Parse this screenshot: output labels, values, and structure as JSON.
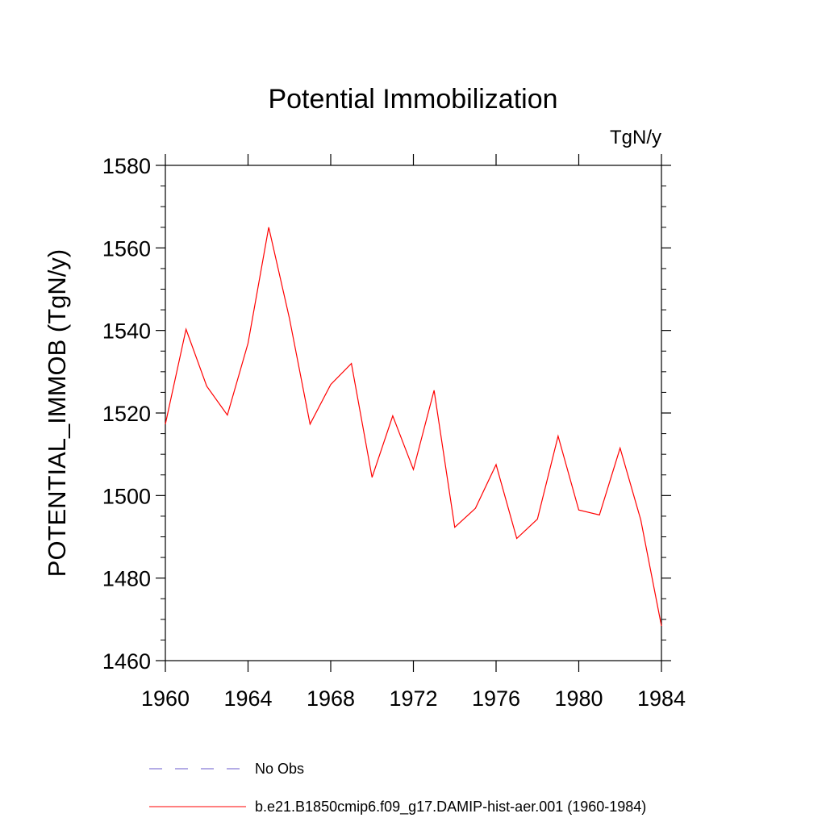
{
  "chart_data": {
    "type": "line",
    "title": "Potential Immobilization",
    "units_label": "TgN/y",
    "ylabel": "POTENTIAL_IMMOB  (TgN/y)",
    "xlabel": "",
    "xlim": [
      1960,
      1984
    ],
    "ylim": [
      1460,
      1580
    ],
    "xticks": [
      1960,
      1964,
      1968,
      1972,
      1976,
      1980,
      1984
    ],
    "yticks": [
      1460,
      1480,
      1500,
      1520,
      1540,
      1560,
      1580
    ],
    "grid": false,
    "legend_position": "bottom",
    "series": [
      {
        "name": "b.e21.B1850cmip6.f09_g17.DAMIP-hist-aer.001 (1960-1984)",
        "color": "#ff0000",
        "style": "solid",
        "x": [
          1960,
          1961,
          1962,
          1963,
          1964,
          1965,
          1966,
          1967,
          1968,
          1969,
          1970,
          1971,
          1972,
          1973,
          1974,
          1975,
          1976,
          1977,
          1978,
          1979,
          1980,
          1981,
          1982,
          1983,
          1984
        ],
        "values": [
          1517.3,
          1540.3,
          1526.5,
          1519.5,
          1536.9,
          1565.0,
          1543.0,
          1517.3,
          1526.9,
          1532.0,
          1504.4,
          1519.3,
          1506.3,
          1525.5,
          1492.3,
          1496.9,
          1507.5,
          1489.6,
          1494.3,
          1514.4,
          1496.5,
          1495.3,
          1511.5,
          1494.1,
          1468.4
        ]
      }
    ],
    "legend": [
      {
        "label": "No Obs",
        "color": "#6a5acd",
        "style": "dashed"
      },
      {
        "label": "b.e21.B1850cmip6.f09_g17.DAMIP-hist-aer.001 (1960-1984)",
        "color": "#ff0000",
        "style": "solid"
      }
    ]
  }
}
